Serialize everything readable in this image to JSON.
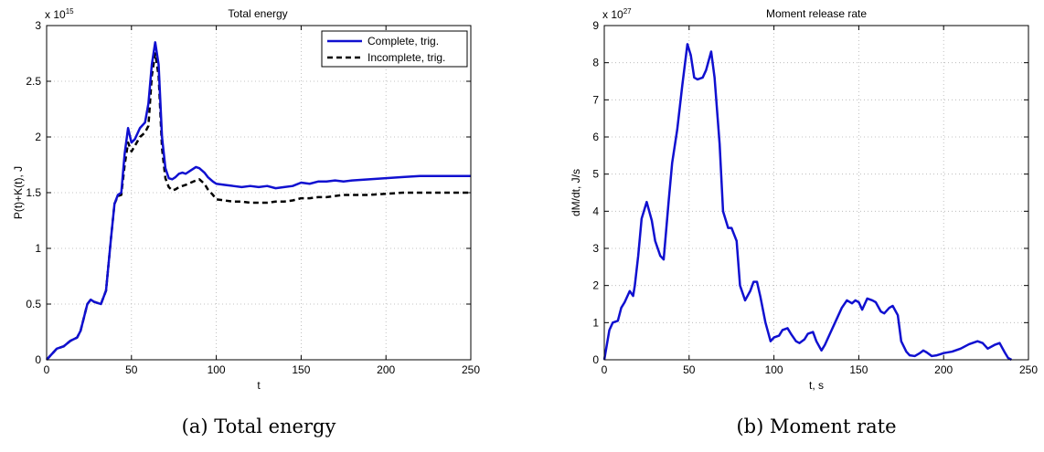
{
  "chart_data": [
    {
      "type": "line",
      "title": "Total energy",
      "xlabel": "t",
      "ylabel": "P(t)+K(t), J",
      "y_multiplier": {
        "base": "x 10",
        "exponent": "15"
      },
      "xlim": [
        0,
        250
      ],
      "ylim": [
        0,
        3
      ],
      "xticks": [
        "0",
        "50",
        "100",
        "150",
        "200",
        "250"
      ],
      "yticks": [
        "0",
        "0.5",
        "1",
        "1.5",
        "2",
        "2.5",
        "3"
      ],
      "xtick_values": [
        0,
        50,
        100,
        150,
        200,
        250
      ],
      "ytick_values": [
        0,
        0.5,
        1,
        1.5,
        2,
        2.5,
        3
      ],
      "grid": true,
      "legend_position": "top-right",
      "caption": "(a)  Total energy",
      "series": [
        {
          "name": "Complete, trig.",
          "color": "#1010d0",
          "style": "solid",
          "x": [
            0,
            3,
            6,
            10,
            14,
            18,
            20,
            22,
            24,
            26,
            28,
            32,
            35,
            38,
            40,
            42,
            44,
            46,
            48,
            50,
            52,
            55,
            58,
            60,
            62,
            64,
            66,
            68,
            70,
            72,
            74,
            76,
            78,
            80,
            82,
            85,
            88,
            90,
            93,
            95,
            98,
            100,
            105,
            110,
            115,
            120,
            125,
            130,
            135,
            140,
            145,
            150,
            155,
            160,
            165,
            170,
            175,
            180,
            190,
            200,
            210,
            220,
            230,
            240,
            250
          ],
          "y": [
            0,
            0.05,
            0.1,
            0.12,
            0.17,
            0.2,
            0.26,
            0.38,
            0.5,
            0.54,
            0.52,
            0.5,
            0.62,
            1.1,
            1.4,
            1.48,
            1.5,
            1.85,
            2.08,
            1.95,
            1.98,
            2.08,
            2.13,
            2.3,
            2.65,
            2.85,
            2.65,
            2.0,
            1.72,
            1.63,
            1.62,
            1.64,
            1.67,
            1.68,
            1.67,
            1.7,
            1.73,
            1.72,
            1.68,
            1.64,
            1.6,
            1.58,
            1.57,
            1.56,
            1.55,
            1.56,
            1.55,
            1.56,
            1.54,
            1.55,
            1.56,
            1.59,
            1.58,
            1.6,
            1.6,
            1.61,
            1.6,
            1.61,
            1.62,
            1.63,
            1.64,
            1.65,
            1.65,
            1.65,
            1.65
          ]
        },
        {
          "name": "Incomplete, trig.",
          "color": "#000000",
          "style": "dashed",
          "x": [
            0,
            3,
            6,
            10,
            14,
            18,
            20,
            22,
            24,
            26,
            28,
            32,
            35,
            38,
            40,
            42,
            44,
            46,
            48,
            50,
            52,
            55,
            58,
            60,
            62,
            64,
            66,
            68,
            70,
            72,
            74,
            76,
            78,
            80,
            82,
            85,
            88,
            90,
            93,
            95,
            98,
            100,
            105,
            110,
            115,
            120,
            125,
            130,
            135,
            140,
            145,
            150,
            155,
            160,
            165,
            170,
            175,
            180,
            190,
            200,
            210,
            220,
            230,
            240,
            250
          ],
          "y": [
            0,
            0.05,
            0.1,
            0.12,
            0.17,
            0.2,
            0.26,
            0.38,
            0.5,
            0.54,
            0.52,
            0.5,
            0.62,
            1.1,
            1.4,
            1.47,
            1.48,
            1.75,
            1.95,
            1.87,
            1.92,
            2.0,
            2.04,
            2.1,
            2.55,
            2.75,
            2.55,
            1.9,
            1.63,
            1.55,
            1.52,
            1.53,
            1.55,
            1.56,
            1.57,
            1.59,
            1.61,
            1.62,
            1.58,
            1.53,
            1.48,
            1.44,
            1.43,
            1.42,
            1.42,
            1.41,
            1.41,
            1.41,
            1.42,
            1.42,
            1.43,
            1.45,
            1.45,
            1.46,
            1.46,
            1.47,
            1.48,
            1.48,
            1.48,
            1.49,
            1.5,
            1.5,
            1.5,
            1.5,
            1.5
          ]
        }
      ]
    },
    {
      "type": "line",
      "title": "Moment release rate",
      "xlabel": "t, s",
      "ylabel": "dM/dt, J/s",
      "y_multiplier": {
        "base": "x 10",
        "exponent": "27"
      },
      "xlim": [
        0,
        250
      ],
      "ylim": [
        0,
        9
      ],
      "xticks": [
        "0",
        "50",
        "100",
        "150",
        "200",
        "250"
      ],
      "yticks": [
        "0",
        "1",
        "2",
        "3",
        "4",
        "5",
        "6",
        "7",
        "8",
        "9"
      ],
      "xtick_values": [
        0,
        50,
        100,
        150,
        200,
        250
      ],
      "ytick_values": [
        0,
        1,
        2,
        3,
        4,
        5,
        6,
        7,
        8,
        9
      ],
      "grid": true,
      "caption": "(b)  Moment rate",
      "series": [
        {
          "name": "",
          "color": "#1010d0",
          "style": "solid",
          "x": [
            0,
            3,
            5,
            8,
            10,
            12,
            15,
            17,
            18,
            20,
            22,
            25,
            28,
            30,
            33,
            35,
            38,
            40,
            43,
            46,
            49,
            51,
            53,
            55,
            58,
            60,
            63,
            65,
            68,
            70,
            73,
            75,
            78,
            80,
            83,
            86,
            88,
            90,
            92,
            95,
            98,
            100,
            103,
            105,
            108,
            110,
            113,
            115,
            118,
            120,
            123,
            125,
            128,
            130,
            133,
            136,
            140,
            143,
            146,
            148,
            150,
            152,
            155,
            158,
            160,
            163,
            165,
            168,
            170,
            173,
            175,
            178,
            180,
            183,
            186,
            188,
            190,
            193,
            196,
            198,
            200,
            205,
            210,
            215,
            220,
            223,
            226,
            230,
            233,
            236,
            238,
            240
          ],
          "y": [
            0,
            0.8,
            1.0,
            1.05,
            1.4,
            1.55,
            1.85,
            1.72,
            2.0,
            2.8,
            3.8,
            4.25,
            3.75,
            3.2,
            2.8,
            2.7,
            4.3,
            5.3,
            6.2,
            7.4,
            8.5,
            8.2,
            7.6,
            7.55,
            7.6,
            7.8,
            8.3,
            7.6,
            5.8,
            4.0,
            3.55,
            3.55,
            3.2,
            2.0,
            1.6,
            1.85,
            2.1,
            2.1,
            1.7,
            1.0,
            0.5,
            0.6,
            0.65,
            0.8,
            0.85,
            0.7,
            0.5,
            0.45,
            0.55,
            0.7,
            0.75,
            0.5,
            0.25,
            0.4,
            0.7,
            1.0,
            1.4,
            1.6,
            1.52,
            1.6,
            1.55,
            1.35,
            1.65,
            1.6,
            1.55,
            1.3,
            1.25,
            1.4,
            1.45,
            1.2,
            0.5,
            0.22,
            0.12,
            0.1,
            0.18,
            0.25,
            0.2,
            0.1,
            0.12,
            0.15,
            0.18,
            0.22,
            0.3,
            0.42,
            0.5,
            0.45,
            0.3,
            0.4,
            0.45,
            0.2,
            0.05,
            0
          ]
        }
      ]
    }
  ]
}
